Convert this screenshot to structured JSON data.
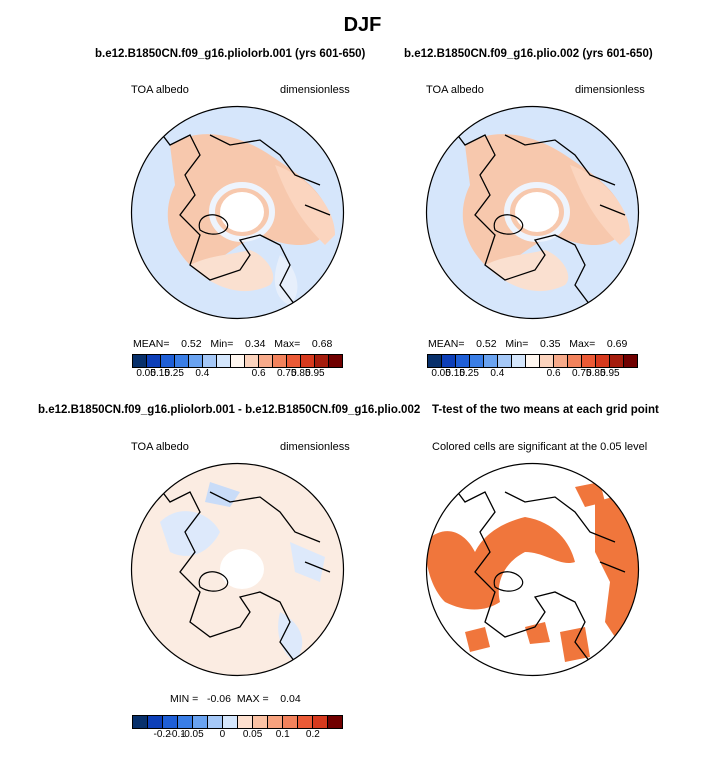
{
  "figure": {
    "title": "DJF"
  },
  "panels": {
    "top_left": {
      "title": "b.e12.B1850CN.f09_g16.pliolorb.001 (yrs 601-650)",
      "left_label": "TOA albedo",
      "right_label": "dimensionless",
      "stats": "MEAN=    0.52   Min=    0.34   Max=    0.68",
      "colorbar_ticks": [
        "0.05",
        "0.15",
        "0.25",
        "0.4",
        "0.6",
        "0.75",
        "0.85",
        "0.95"
      ]
    },
    "top_right": {
      "title": "b.e12.B1850CN.f09_g16.plio.002 (yrs 601-650)",
      "left_label": "TOA albedo",
      "right_label": "dimensionless",
      "stats": "MEAN=    0.52   Min=    0.35   Max=    0.69",
      "colorbar_ticks": [
        "0.05",
        "0.15",
        "0.25",
        "0.4",
        "0.6",
        "0.75",
        "0.85",
        "0.95"
      ]
    },
    "bottom_left": {
      "title": "b.e12.B1850CN.f09_g16.pliolorb.001 - b.e12.B1850CN.f09_g16.plio.002",
      "left_label": "TOA albedo",
      "right_label": "dimensionless",
      "stats": "MIN =   -0.06  MAX =    0.04",
      "colorbar_ticks": [
        "-0.2",
        "-0.1",
        "-0.05",
        "0",
        "0.05",
        "0.1",
        "0.2"
      ]
    },
    "bottom_right": {
      "title": "T-test of the two means at each grid point",
      "subtitle": "Colored cells are significant at the 0.05 level"
    }
  },
  "colors": {
    "abs_colorbar": [
      "#08306b",
      "#0d3fb8",
      "#1f5fd6",
      "#3a7ee6",
      "#6aa3f0",
      "#a5c8f7",
      "#d4e6fc",
      "#fff7f0",
      "#fbd3bd",
      "#f7aa8a",
      "#f2825c",
      "#eb5a36",
      "#d63a1e",
      "#a51d0d",
      "#700000"
    ],
    "diff_colorbar": [
      "#08306b",
      "#0d3fb8",
      "#1f5fd6",
      "#3a7ee6",
      "#6aa3f0",
      "#a5c8f7",
      "#d4e6fc",
      "#fde0cf",
      "#fbc2a4",
      "#f7a27e",
      "#f2825c",
      "#eb5a36",
      "#d63a1e",
      "#700000"
    ],
    "ocean_blue": "#d6e6fb",
    "land_orange": "#f6c4a8",
    "significant": "#f0763c"
  }
}
